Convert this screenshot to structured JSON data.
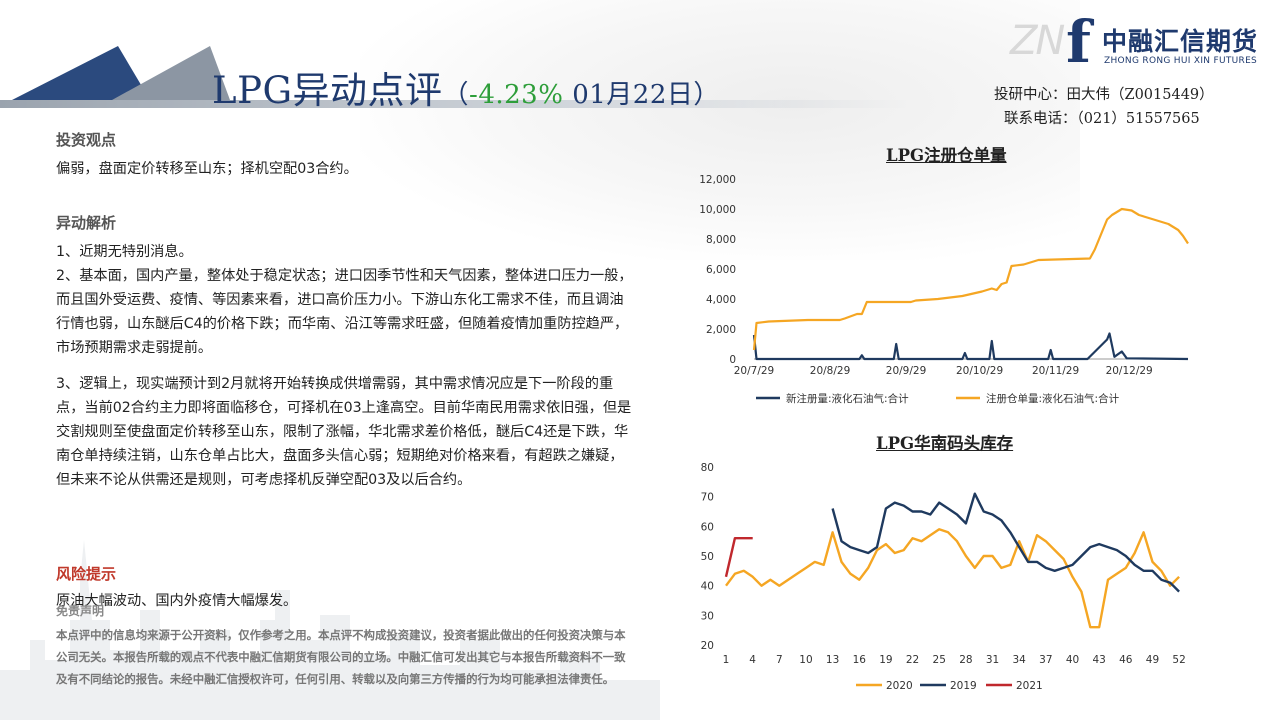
{
  "header": {
    "title_main": "LPG异动点评",
    "paren_open": "（",
    "pct_change": "-4.23%",
    "date": " 01月22日",
    "paren_close": "）"
  },
  "logo": {
    "cn": "中融汇信期货",
    "en": "ZHONG RONG HUI XIN FUTURES",
    "mark": "f",
    "zn": "ZN"
  },
  "contact": {
    "analyst": "投研中心：田大伟（Z0015449）",
    "phone": "联系电话：（021）51557565"
  },
  "view": {
    "title": "投资观点",
    "text": "偏弱，盘面定价转移至山东；择机空配03合约。"
  },
  "analysis": {
    "title": "异动解析",
    "p1": "1、近期无特别消息。",
    "p2": "2、基本面，国内产量，整体处于稳定状态；进口因季节性和天气因素，整体进口压力一般，而且国外受运费、疫情、等因素来看，进口高价压力小。下游山东化工需求不佳，而且调油行情也弱，山东醚后C4的价格下跌；而华南、沿江等需求旺盛，但随着疫情加重防控趋严，市场预期需求走弱提前。",
    "p3": "3、逻辑上，现实端预计到2月就将开始转换成供增需弱，其中需求情况应是下一阶段的重点，当前02合约主力即将面临移仓，可择机在03上逢高空。目前华南民用需求依旧强，但是交割规则至使盘面定价转移至山东，限制了涨幅，华北需求差价格低，醚后C4还是下跌，华南仓单持续注销，山东仓单占比大，盘面多头信心弱；短期绝对价格来看，有超跌之嫌疑，但未来不论从供需还是规则，可考虑择机反弹空配03及以后合约。"
  },
  "risk": {
    "title": "风险提示",
    "text": "原油大幅波动、国内外疫情大幅爆发。"
  },
  "disclaimer": {
    "title": "免责声明",
    "text": "本点评中的信息均来源于公开资料，仅作参考之用。本点评不构成投资建议，投资者据此做出的任何投资决策与本公司无关。本报告所载的观点不代表中融汇信期货有限公司的立场。中融汇信可发出其它与本报告所载资料不一致及有不同结论的报告。未经中融汇信授权许可，任何引用、转载以及向第三方传播的行为均可能承担法律责任。"
  },
  "chart_data": [
    {
      "type": "line",
      "title": "LPG注册仓单量",
      "x_ticks": [
        "20/7/29",
        "20/8/29",
        "20/9/29",
        "20/10/29",
        "20/11/29",
        "20/12/29"
      ],
      "x_start": "2020-07-29",
      "x_end": "2021-01-22",
      "ylim": [
        0,
        12000
      ],
      "y_ticks": [
        "0",
        "2,000",
        "4,000",
        "6,000",
        "8,000",
        "10,000",
        "12,000"
      ],
      "colors": {
        "new": "#1f3a5f",
        "registered": "#f5a623"
      },
      "series": [
        {
          "name": "新注册量:液化石油气:合计",
          "points": [
            [
              "2020-07-29",
              1600
            ],
            [
              "2020-07-30",
              0
            ],
            [
              "2020-09-10",
              0
            ],
            [
              "2020-09-11",
              250
            ],
            [
              "2020-09-12",
              0
            ],
            [
              "2020-09-24",
              0
            ],
            [
              "2020-09-25",
              1000
            ],
            [
              "2020-09-26",
              0
            ],
            [
              "2020-10-22",
              0
            ],
            [
              "2020-10-23",
              400
            ],
            [
              "2020-10-24",
              0
            ],
            [
              "2020-11-02",
              0
            ],
            [
              "2020-11-03",
              1200
            ],
            [
              "2020-11-04",
              0
            ],
            [
              "2020-11-26",
              0
            ],
            [
              "2020-11-27",
              600
            ],
            [
              "2020-11-28",
              0
            ],
            [
              "2020-12-12",
              0
            ],
            [
              "2020-12-20",
              1300
            ],
            [
              "2020-12-21",
              1700
            ],
            [
              "2020-12-23",
              150
            ],
            [
              "2020-12-26",
              500
            ],
            [
              "2020-12-28",
              50
            ],
            [
              "2021-01-22",
              0
            ]
          ]
        },
        {
          "name": "注册仓单量:液化石油气:合计",
          "points": [
            [
              "2020-07-29",
              600
            ],
            [
              "2020-07-30",
              2400
            ],
            [
              "2020-08-04",
              2500
            ],
            [
              "2020-08-20",
              2600
            ],
            [
              "2020-09-02",
              2600
            ],
            [
              "2020-09-04",
              2700
            ],
            [
              "2020-09-09",
              3000
            ],
            [
              "2020-09-11",
              3000
            ],
            [
              "2020-09-13",
              3800
            ],
            [
              "2020-10-01",
              3800
            ],
            [
              "2020-10-03",
              3900
            ],
            [
              "2020-10-12",
              4000
            ],
            [
              "2020-10-22",
              4200
            ],
            [
              "2020-10-30",
              4500
            ],
            [
              "2020-11-03",
              4700
            ],
            [
              "2020-11-05",
              4600
            ],
            [
              "2020-11-07",
              5000
            ],
            [
              "2020-11-09",
              5100
            ],
            [
              "2020-11-11",
              6200
            ],
            [
              "2020-11-16",
              6300
            ],
            [
              "2020-11-18",
              6400
            ],
            [
              "2020-11-22",
              6600
            ],
            [
              "2020-12-13",
              6700
            ],
            [
              "2020-12-15",
              7300
            ],
            [
              "2020-12-20",
              9300
            ],
            [
              "2020-12-22",
              9600
            ],
            [
              "2020-12-26",
              10000
            ],
            [
              "2020-12-30",
              9900
            ],
            [
              "2021-01-02",
              9600
            ],
            [
              "2021-01-08",
              9300
            ],
            [
              "2021-01-14",
              9000
            ],
            [
              "2021-01-18",
              8600
            ],
            [
              "2021-01-20",
              8200
            ],
            [
              "2021-01-22",
              7700
            ]
          ]
        }
      ]
    },
    {
      "type": "line",
      "title": "LPG华南码头库存",
      "x_ticks": [
        "1",
        "4",
        "7",
        "10",
        "13",
        "16",
        "19",
        "22",
        "25",
        "28",
        "31",
        "34",
        "37",
        "40",
        "43",
        "46",
        "49",
        "52"
      ],
      "xlim": [
        1,
        53
      ],
      "ylim": [
        20,
        80
      ],
      "y_ticks": [
        "20",
        "30",
        "40",
        "50",
        "60",
        "70",
        "80"
      ],
      "colors": {
        "2020": "#f5a623",
        "2019": "#1f3a5f",
        "2021": "#c0282d"
      },
      "series": [
        {
          "name": "2020",
          "points": [
            [
              1,
              40
            ],
            [
              2,
              44
            ],
            [
              3,
              45
            ],
            [
              4,
              43
            ],
            [
              5,
              40
            ],
            [
              6,
              42
            ],
            [
              7,
              40
            ],
            [
              8,
              42
            ],
            [
              9,
              44
            ],
            [
              10,
              46
            ],
            [
              11,
              48
            ],
            [
              12,
              47
            ],
            [
              13,
              58
            ],
            [
              14,
              48
            ],
            [
              15,
              44
            ],
            [
              16,
              42
            ],
            [
              17,
              46
            ],
            [
              18,
              52
            ],
            [
              19,
              54
            ],
            [
              20,
              51
            ],
            [
              21,
              52
            ],
            [
              22,
              56
            ],
            [
              23,
              55
            ],
            [
              24,
              57
            ],
            [
              25,
              59
            ],
            [
              26,
              58
            ],
            [
              27,
              55
            ],
            [
              28,
              50
            ],
            [
              29,
              46
            ],
            [
              30,
              50
            ],
            [
              31,
              50
            ],
            [
              32,
              46
            ],
            [
              33,
              47
            ],
            [
              34,
              55
            ],
            [
              35,
              48
            ],
            [
              36,
              57
            ],
            [
              37,
              55
            ],
            [
              38,
              52
            ],
            [
              39,
              49
            ],
            [
              40,
              43
            ],
            [
              41,
              38
            ],
            [
              42,
              26
            ],
            [
              43,
              26
            ],
            [
              44,
              42
            ],
            [
              45,
              44
            ],
            [
              46,
              46
            ],
            [
              47,
              51
            ],
            [
              48,
              58
            ],
            [
              49,
              48
            ],
            [
              50,
              45
            ],
            [
              51,
              40
            ],
            [
              52,
              43
            ]
          ]
        },
        {
          "name": "2019",
          "points": [
            [
              13,
              66
            ],
            [
              14,
              55
            ],
            [
              15,
              53
            ],
            [
              16,
              52
            ],
            [
              17,
              51
            ],
            [
              18,
              53
            ],
            [
              19,
              66
            ],
            [
              20,
              68
            ],
            [
              21,
              67
            ],
            [
              22,
              65
            ],
            [
              23,
              65
            ],
            [
              24,
              64
            ],
            [
              25,
              68
            ],
            [
              26,
              66
            ],
            [
              27,
              64
            ],
            [
              28,
              61
            ],
            [
              29,
              71
            ],
            [
              30,
              65
            ],
            [
              31,
              64
            ],
            [
              32,
              62
            ],
            [
              33,
              58
            ],
            [
              34,
              53
            ],
            [
              35,
              48
            ],
            [
              36,
              48
            ],
            [
              37,
              46
            ],
            [
              38,
              45
            ],
            [
              39,
              46
            ],
            [
              40,
              47
            ],
            [
              41,
              50
            ],
            [
              42,
              53
            ],
            [
              43,
              54
            ],
            [
              44,
              53
            ],
            [
              45,
              52
            ],
            [
              46,
              50
            ],
            [
              47,
              47
            ],
            [
              48,
              45
            ],
            [
              49,
              45
            ],
            [
              50,
              42
            ],
            [
              51,
              41
            ],
            [
              52,
              38
            ]
          ]
        },
        {
          "name": "2021",
          "points": [
            [
              1,
              43
            ],
            [
              2,
              56
            ],
            [
              3,
              56
            ],
            [
              4,
              56
            ]
          ]
        }
      ]
    }
  ]
}
